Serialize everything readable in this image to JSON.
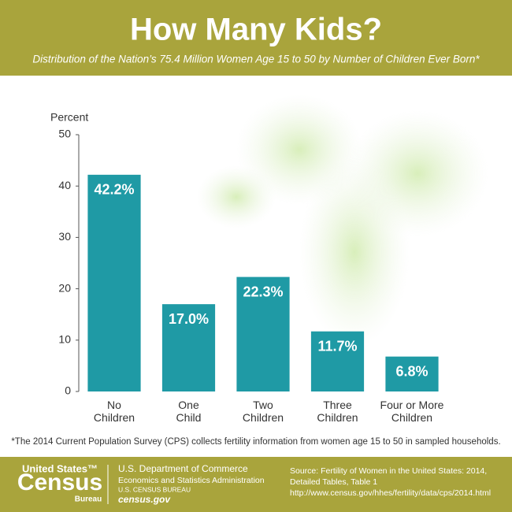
{
  "chart_data": {
    "type": "bar",
    "title": "How Many Kids?",
    "subtitle": "Distribution of the Nation’s 75.4 Million Women Age 15 to 50 by Number of Children Ever Born*",
    "y_label": "Percent",
    "categories": [
      "No\nChildren",
      "One\nChild",
      "Two\nChildren",
      "Three\nChildren",
      "Four or More\nChildren"
    ],
    "values": [
      42.2,
      17.0,
      22.3,
      11.7,
      6.8
    ],
    "value_labels": [
      "42.2%",
      "17.0%",
      "22.3%",
      "11.7%",
      "6.8%"
    ],
    "color": "#1f9aa5",
    "ylim": [
      0,
      50
    ],
    "yticks": [
      0,
      10,
      20,
      30,
      40,
      50
    ]
  },
  "footnote": "*The 2014 Current Population Survey (CPS) collects fertility information from women age 15 to 50 in sampled households.",
  "footer": {
    "logo_top": "United States™",
    "logo_main": "Census",
    "logo_bottom": "Bureau",
    "dept": "U.S. Department of Commerce",
    "admin": "Economics and Statistics Administration",
    "bureau": "U.S. CENSUS BUREAU",
    "site": "census.gov",
    "source_1": "Source: Fertility of Women in the United States: 2014,",
    "source_2": "Detailed Tables, Table 1",
    "source_3": "http://www.census.gov/hhes/fertility/data/cps/2014.html"
  }
}
